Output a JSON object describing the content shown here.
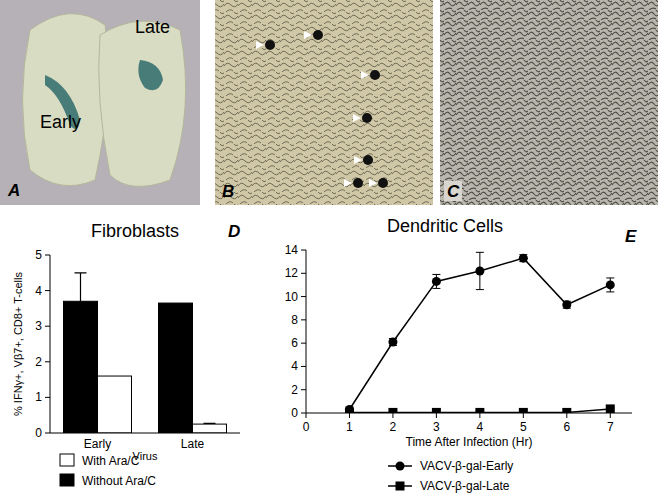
{
  "chart_data": [
    {
      "type": "bar",
      "title": "Fibroblasts",
      "annotations": [
        "D"
      ],
      "x_label": "Virus",
      "y_label": "% IFNγ+, Vβ7+, CD8+ T-cells",
      "categories": [
        "Early",
        "Late"
      ],
      "series": [
        {
          "name": "Without Ara/C",
          "color": "#000000",
          "values": [
            3.7,
            3.65
          ],
          "errors": [
            0.8,
            0
          ]
        },
        {
          "name": "With Ara/C",
          "color": "#ffffff",
          "values": [
            1.6,
            0.25
          ],
          "errors": [
            0,
            0.02
          ]
        }
      ],
      "ylim": [
        0,
        5
      ],
      "yticks": [
        0,
        1,
        2,
        3,
        4,
        5
      ],
      "legend": "bottom",
      "grid": false
    },
    {
      "type": "line",
      "title": "Dendritic Cells",
      "annotations": [
        "E"
      ],
      "x_label": "Time After Infection (Hr)",
      "x": [
        1,
        2,
        3,
        4,
        5,
        6,
        7
      ],
      "series": [
        {
          "name": "VACV-β-gal-Early",
          "color": "#000000",
          "marker": "circle",
          "values": [
            0.3,
            6.1,
            11.3,
            12.2,
            13.3,
            9.3,
            11.0
          ],
          "errors": [
            0.2,
            0.3,
            0.6,
            1.6,
            0.3,
            0.3,
            0.6
          ]
        },
        {
          "name": "VACV-β-gal-Late",
          "color": "#000000",
          "marker": "square",
          "values": [
            0.05,
            0.05,
            0.05,
            0.05,
            0.05,
            0.05,
            0.35
          ],
          "errors": [
            0,
            0,
            0,
            0,
            0,
            0,
            0.15
          ]
        }
      ],
      "xlim": [
        0,
        7.5
      ],
      "xticks": [
        0,
        1,
        2,
        3,
        4,
        5,
        6,
        7
      ],
      "ylim": [
        0,
        14
      ],
      "yticks": [
        0,
        2,
        4,
        6,
        8,
        10,
        12,
        14
      ],
      "legend": "bottom",
      "grid": false
    }
  ],
  "images": [
    {
      "letter": "A",
      "labels": [
        "Late",
        "Early"
      ]
    },
    {
      "letter": "B"
    },
    {
      "letter": "C"
    }
  ]
}
